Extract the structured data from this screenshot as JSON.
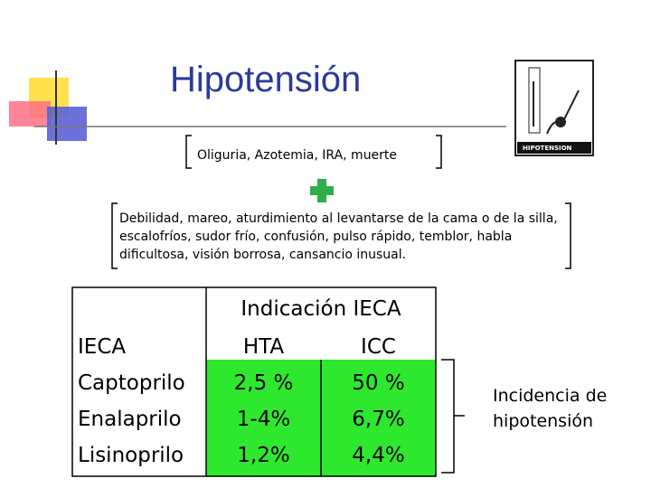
{
  "title": "Hipotensión",
  "consequences": "Oliguria, Azotemia, IRA, muerte",
  "symptoms": "Debilidad, mareo, aturdimiento al levantarse de la cama o de la silla, escalofríos, sudor frío, confusión, pulso rápido, temblor, habla dificultosa, visión borrosa, cansancio inusual.",
  "image_caption": "HIPOTENSION",
  "table": {
    "header": "Indicación IECA",
    "rows": [
      [
        "IECA",
        "HTA",
        "ICC"
      ],
      [
        "Captoprilo",
        "2,5 %",
        "50 %"
      ],
      [
        "Enalaprilo",
        "1-4%",
        "6,7%"
      ],
      [
        "Lisinoprilo",
        "1,2%",
        "4,4%"
      ]
    ]
  },
  "side_label": "Incidencia de hipotensión"
}
